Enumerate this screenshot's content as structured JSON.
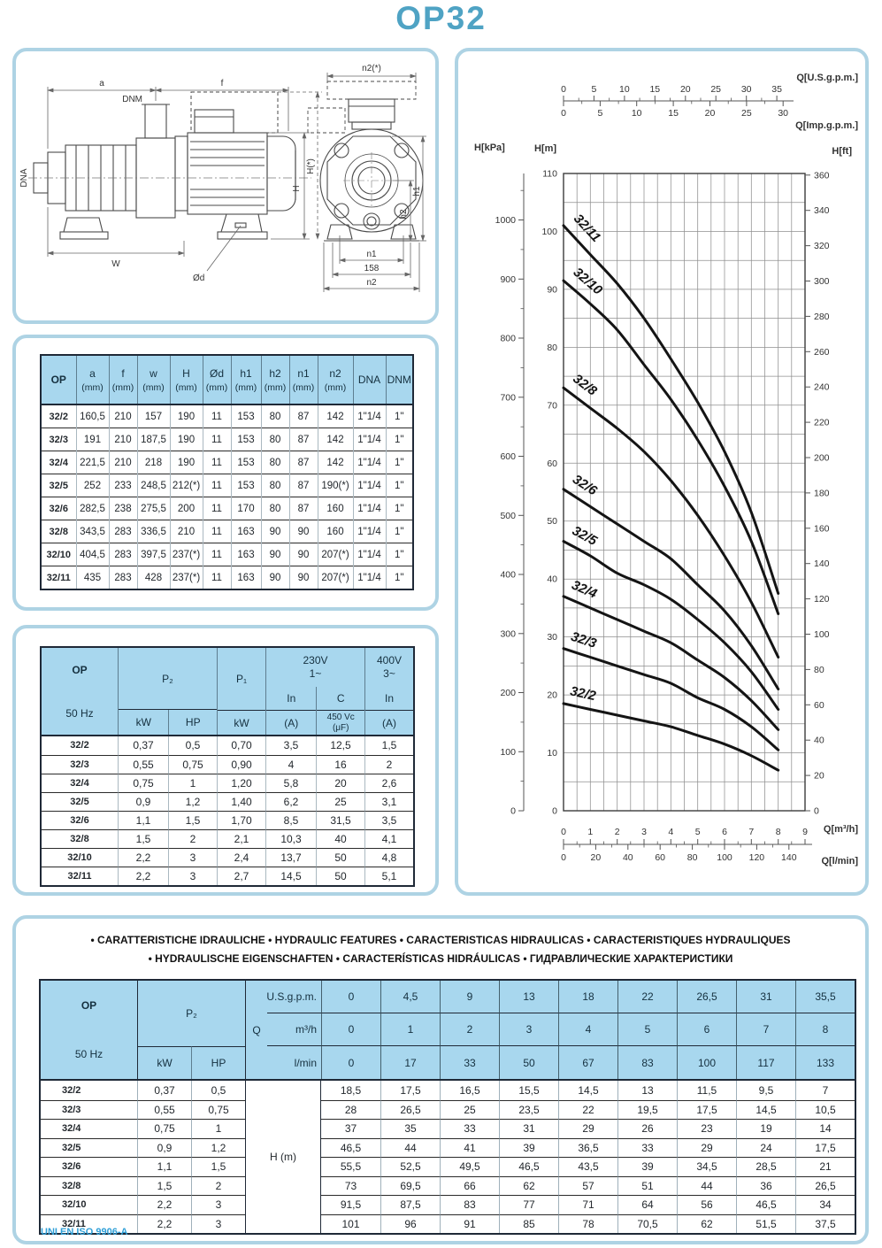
{
  "page": {
    "title": "OP32",
    "footer": "UNI EN ISO 9906-A",
    "accent_color": "#4fa3c4",
    "panel_border_color": "#aed3e4",
    "table_header_fill": "#a8d7ee"
  },
  "drawing": {
    "labels": {
      "a": "a",
      "f": "f",
      "dnm": "DNM",
      "dna": "DNA",
      "h": "H",
      "h_star": "H(*)",
      "w": "W",
      "od": "Ød",
      "n2_star": "n2(*)",
      "h1": "h1",
      "h2": "h2",
      "n1": "n1",
      "d158": "158",
      "n2": "n2"
    }
  },
  "dim_table": {
    "columns": [
      "OP",
      "a",
      "f",
      "w",
      "H",
      "Ød",
      "h1",
      "h2",
      "n1",
      "n2",
      "DNA",
      "DNM"
    ],
    "units": [
      "",
      "(mm)",
      "(mm)",
      "(mm)",
      "(mm)",
      "(mm)",
      "(mm)",
      "(mm)",
      "(mm)",
      "(mm)",
      "",
      ""
    ],
    "rows": [
      [
        "32/2",
        "160,5",
        "210",
        "157",
        "190",
        "11",
        "153",
        "80",
        "87",
        "142",
        "1\"1/4",
        "1\""
      ],
      [
        "32/3",
        "191",
        "210",
        "187,5",
        "190",
        "11",
        "153",
        "80",
        "87",
        "142",
        "1\"1/4",
        "1\""
      ],
      [
        "32/4",
        "221,5",
        "210",
        "218",
        "190",
        "11",
        "153",
        "80",
        "87",
        "142",
        "1\"1/4",
        "1\""
      ],
      [
        "32/5",
        "252",
        "233",
        "248,5",
        "212(*)",
        "11",
        "153",
        "80",
        "87",
        "190(*)",
        "1\"1/4",
        "1\""
      ],
      [
        "32/6",
        "282,5",
        "238",
        "275,5",
        "200",
        "11",
        "170",
        "80",
        "87",
        "160",
        "1\"1/4",
        "1\""
      ],
      [
        "32/8",
        "343,5",
        "283",
        "336,5",
        "210",
        "11",
        "163",
        "90",
        "90",
        "160",
        "1\"1/4",
        "1\""
      ],
      [
        "32/10",
        "404,5",
        "283",
        "397,5",
        "237(*)",
        "11",
        "163",
        "90",
        "90",
        "207(*)",
        "1\"1/4",
        "1\""
      ],
      [
        "32/11",
        "435",
        "283",
        "428",
        "237(*)",
        "11",
        "163",
        "90",
        "90",
        "207(*)",
        "1\"1/4",
        "1\""
      ]
    ]
  },
  "ele_table": {
    "op": "OP",
    "freq": "50 Hz",
    "p2": "P₂",
    "p1": "P₁",
    "v230_l1": "230V",
    "v230_l2": "1~",
    "v400_l1": "400V",
    "v400_l2": "3~",
    "in_label": "In",
    "c_label": "C",
    "kw": "kW",
    "hp": "HP",
    "amp": "(A)",
    "cap_l1": "450 Vc",
    "cap_l2": "(μF)",
    "rows": [
      [
        "32/2",
        "0,37",
        "0,5",
        "0,70",
        "3,5",
        "12,5",
        "1,5"
      ],
      [
        "32/3",
        "0,55",
        "0,75",
        "0,90",
        "4",
        "16",
        "2"
      ],
      [
        "32/4",
        "0,75",
        "1",
        "1,20",
        "5,8",
        "20",
        "2,6"
      ],
      [
        "32/5",
        "0,9",
        "1,2",
        "1,40",
        "6,2",
        "25",
        "3,1"
      ],
      [
        "32/6",
        "1,1",
        "1,5",
        "1,70",
        "8,5",
        "31,5",
        "3,5"
      ],
      [
        "32/8",
        "1,5",
        "2",
        "2,1",
        "10,3",
        "40",
        "4,1"
      ],
      [
        "32/10",
        "2,2",
        "3",
        "2,4",
        "13,7",
        "50",
        "4,8"
      ],
      [
        "32/11",
        "2,2",
        "3",
        "2,7",
        "14,5",
        "50",
        "5,1"
      ]
    ]
  },
  "hydro_table": {
    "title_line1": "• CARATTERISTICHE IDRAULICHE • HYDRAULIC FEATURES • CARACTERISTICAS HIDRAULICAS • CARACTERISTIQUES HYDRAULIQUES",
    "title_line2": "• HYDRAULISCHE EIGENSCHAFTEN • CARACTERÍSTICAS HIDRÁULICAS • ГИДРАВЛИЧЕСКИЕ ХАРАКТЕРИСТИКИ",
    "op": "OP",
    "freq": "50 Hz",
    "p2": "P₂",
    "kw": "kW",
    "hp": "HP",
    "q": "Q",
    "hm": "H (m)",
    "unit_usgpm": "U.S.g.p.m.",
    "unit_m3h": "m³/h",
    "unit_lmin": "l/min",
    "q_usgpm": [
      "0",
      "4,5",
      "9",
      "13",
      "18",
      "22",
      "26,5",
      "31",
      "35,5"
    ],
    "q_m3h": [
      "0",
      "1",
      "2",
      "3",
      "4",
      "5",
      "6",
      "7",
      "8"
    ],
    "q_lmin": [
      "0",
      "17",
      "33",
      "50",
      "67",
      "83",
      "100",
      "117",
      "133"
    ],
    "rows": [
      [
        "32/2",
        "0,37",
        "0,5",
        [
          "18,5",
          "17,5",
          "16,5",
          "15,5",
          "14,5",
          "13",
          "11,5",
          "9,5",
          "7"
        ]
      ],
      [
        "32/3",
        "0,55",
        "0,75",
        [
          "28",
          "26,5",
          "25",
          "23,5",
          "22",
          "19,5",
          "17,5",
          "14,5",
          "10,5"
        ]
      ],
      [
        "32/4",
        "0,75",
        "1",
        [
          "37",
          "35",
          "33",
          "31",
          "29",
          "26",
          "23",
          "19",
          "14"
        ]
      ],
      [
        "32/5",
        "0,9",
        "1,2",
        [
          "46,5",
          "44",
          "41",
          "39",
          "36,5",
          "33",
          "29",
          "24",
          "17,5"
        ]
      ],
      [
        "32/6",
        "1,1",
        "1,5",
        [
          "55,5",
          "52,5",
          "49,5",
          "46,5",
          "43,5",
          "39",
          "34,5",
          "28,5",
          "21"
        ]
      ],
      [
        "32/8",
        "1,5",
        "2",
        [
          "73",
          "69,5",
          "66",
          "62",
          "57",
          "51",
          "44",
          "36",
          "26,5"
        ]
      ],
      [
        "32/10",
        "2,2",
        "3",
        [
          "91,5",
          "87,5",
          "83",
          "77",
          "71",
          "64",
          "56",
          "46,5",
          "34"
        ]
      ],
      [
        "32/11",
        "2,2",
        "3",
        [
          "101",
          "96",
          "91",
          "85",
          "78",
          "70,5",
          "62",
          "51,5",
          "37,5"
        ]
      ]
    ]
  },
  "chart_data": {
    "type": "line",
    "title": "",
    "x_label_m3h": "Q[m³/h]",
    "x_label_lmin": "Q[l/min]",
    "x_label_usgpm": "Q[U.S.g.p.m.]",
    "x_label_impgpm": "Q[Imp.g.p.m.]",
    "y_label_m": "H[m]",
    "y_label_kpa": "H[kPa]",
    "y_label_ft": "H[ft]",
    "xlim_m3h": [
      0,
      9
    ],
    "ylim_m": [
      0,
      110
    ],
    "grid": true,
    "x_m3h": [
      0,
      1,
      2,
      3,
      4,
      5,
      6,
      7,
      8
    ],
    "series": [
      {
        "name": "32/2",
        "values": [
          18.5,
          17.5,
          16.5,
          15.5,
          14.5,
          13,
          11.5,
          9.5,
          7
        ]
      },
      {
        "name": "32/3",
        "values": [
          28,
          26.5,
          25,
          23.5,
          22,
          19.5,
          17.5,
          14.5,
          10.5
        ]
      },
      {
        "name": "32/4",
        "values": [
          37,
          35,
          33,
          31,
          29,
          26,
          23,
          19,
          14
        ]
      },
      {
        "name": "32/5",
        "values": [
          46.5,
          44,
          41,
          39,
          36.5,
          33,
          29,
          24,
          17.5
        ]
      },
      {
        "name": "32/6",
        "values": [
          55.5,
          52.5,
          49.5,
          46.5,
          43.5,
          39,
          34.5,
          28.5,
          21
        ]
      },
      {
        "name": "32/8",
        "values": [
          73,
          69.5,
          66,
          62,
          57,
          51,
          44,
          36,
          26.5
        ]
      },
      {
        "name": "32/10",
        "values": [
          91.5,
          87.5,
          83,
          77,
          71,
          64,
          56,
          46.5,
          34
        ]
      },
      {
        "name": "32/11",
        "values": [
          101,
          96,
          91,
          85,
          78,
          70.5,
          62,
          51.5,
          37.5
        ]
      }
    ],
    "ticks_usgpm": [
      0,
      5,
      10,
      15,
      20,
      25,
      30,
      35
    ],
    "ticks_impgpm": [
      0,
      5,
      10,
      15,
      20,
      25,
      30
    ],
    "ticks_m3h": [
      0,
      1,
      2,
      3,
      4,
      5,
      6,
      7,
      8,
      9
    ],
    "ticks_lmin": [
      0,
      20,
      40,
      60,
      80,
      100,
      120,
      140
    ],
    "ticks_m": [
      0,
      10,
      20,
      30,
      40,
      50,
      60,
      70,
      80,
      90,
      100,
      110
    ],
    "ticks_kpa": [
      0,
      100,
      200,
      300,
      400,
      500,
      600,
      700,
      800,
      900,
      1000
    ],
    "ticks_ft_step": 20,
    "ticks_ft_max": 360
  }
}
